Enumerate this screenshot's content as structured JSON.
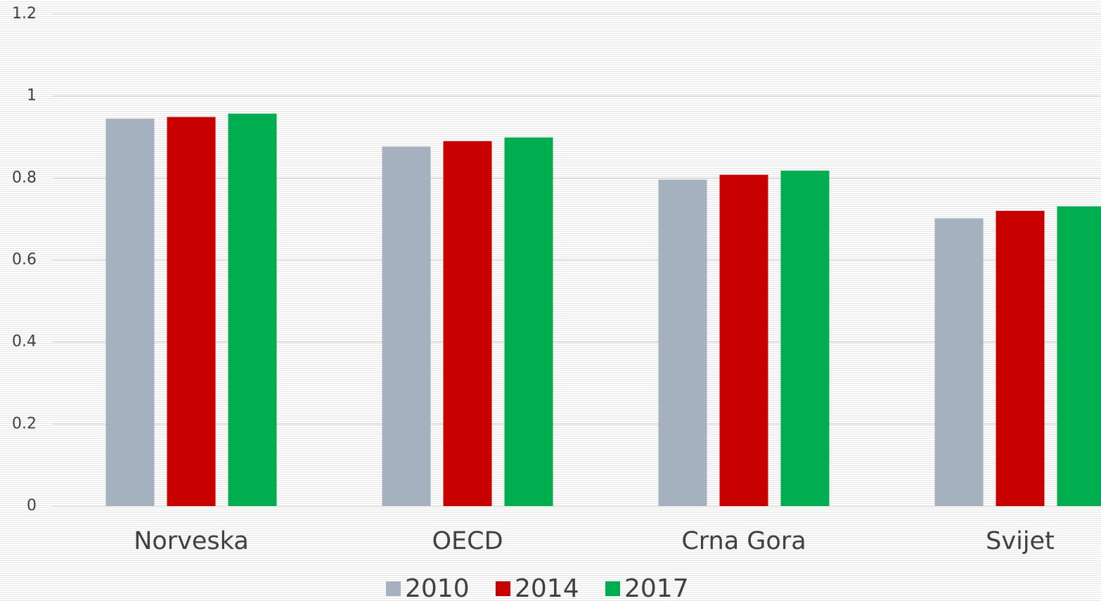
{
  "chart_data": {
    "type": "bar",
    "categories": [
      "Norveska",
      "OECD",
      "Crna Gora",
      "Svijet"
    ],
    "series": [
      {
        "name": "2010",
        "color": "#a5b1bf",
        "values": [
          0.945,
          0.877,
          0.796,
          0.702
        ]
      },
      {
        "name": "2014",
        "color": "#c90000",
        "values": [
          0.949,
          0.89,
          0.808,
          0.72
        ]
      },
      {
        "name": "2017",
        "color": "#00ae50",
        "values": [
          0.957,
          0.899,
          0.818,
          0.731
        ]
      }
    ],
    "ylim": [
      0,
      1.2
    ],
    "yticks": [
      0,
      0.2,
      0.4,
      0.6,
      0.8,
      1,
      1.2
    ],
    "legend": "bottom"
  }
}
